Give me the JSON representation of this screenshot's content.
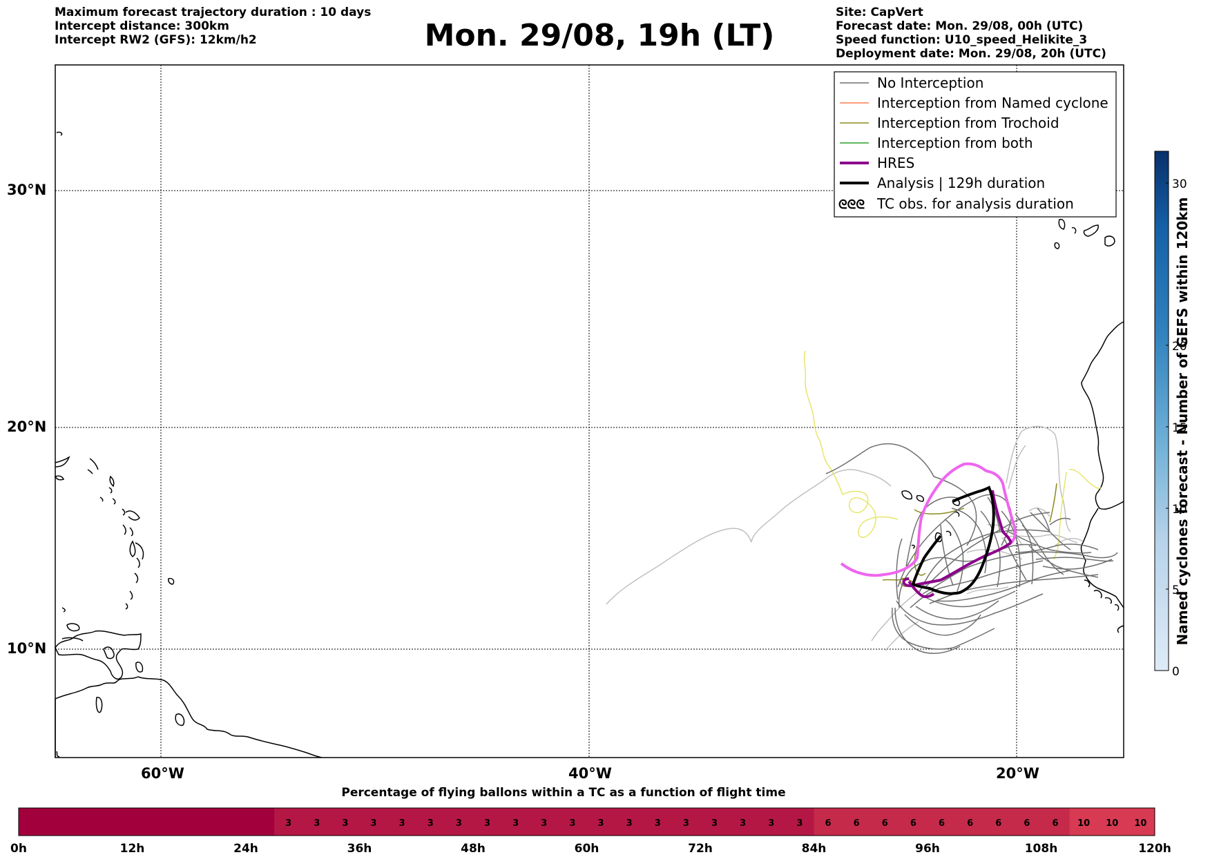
{
  "header_left": [
    "Maximum forecast trajectory duration : 10 days",
    "Intercept distance: 300km",
    "Intercept RW2 (GFS):  12km/h2"
  ],
  "title": "Mon. 29/08, 19h (LT)",
  "header_right": [
    "Site: CapVert",
    "Forecast date: Mon. 29/08, 00h (UTC)",
    "Speed function: U10_speed_Helikite_3",
    "Deployment date: Mon. 29/08, 20h (UTC)"
  ],
  "map": {
    "lat_ticks": [
      "30°N",
      "20°N",
      "10°N"
    ],
    "lon_ticks": [
      "60°W",
      "40°W",
      "20°W"
    ]
  },
  "legend": [
    {
      "label": "No Interception",
      "color": "#6e6e6e"
    },
    {
      "label": "Interception from Named cyclone",
      "color": "#ff7f50"
    },
    {
      "label": "Interception from Trochoid",
      "color": "#8b8b1e"
    },
    {
      "label": "Interception from both",
      "color": "#2ca02c"
    },
    {
      "label": "HRES",
      "color": "#8b008b"
    },
    {
      "label": "Analysis | 129h duration",
      "color": "#000000"
    },
    {
      "label": "TC obs. for analysis duration",
      "icon": "cyclone-symbols-icon",
      "symbol": "ᘓᘓᘓ"
    }
  ],
  "colorbar": {
    "label": "Named cyclones forecast - Number of GEFS within 120km",
    "ticks": [
      "30",
      "20",
      "15",
      "10",
      "5",
      "0"
    ]
  },
  "percentage_bar": {
    "title": "Percentage of flying ballons within a TC as a function of flight time",
    "cells": [
      "",
      "",
      "",
      "",
      "",
      "",
      "",
      "",
      "",
      "3",
      "3",
      "3",
      "3",
      "3",
      "3",
      "3",
      "3",
      "3",
      "3",
      "3",
      "3",
      "3",
      "3",
      "3",
      "3",
      "3",
      "3",
      "3",
      "6",
      "6",
      "6",
      "6",
      "6",
      "6",
      "6",
      "6",
      "6",
      "10",
      "10",
      "10"
    ],
    "time_ticks": [
      "0h",
      "12h",
      "24h",
      "36h",
      "48h",
      "60h",
      "72h",
      "84h",
      "96h",
      "108h",
      "120h"
    ]
  }
}
